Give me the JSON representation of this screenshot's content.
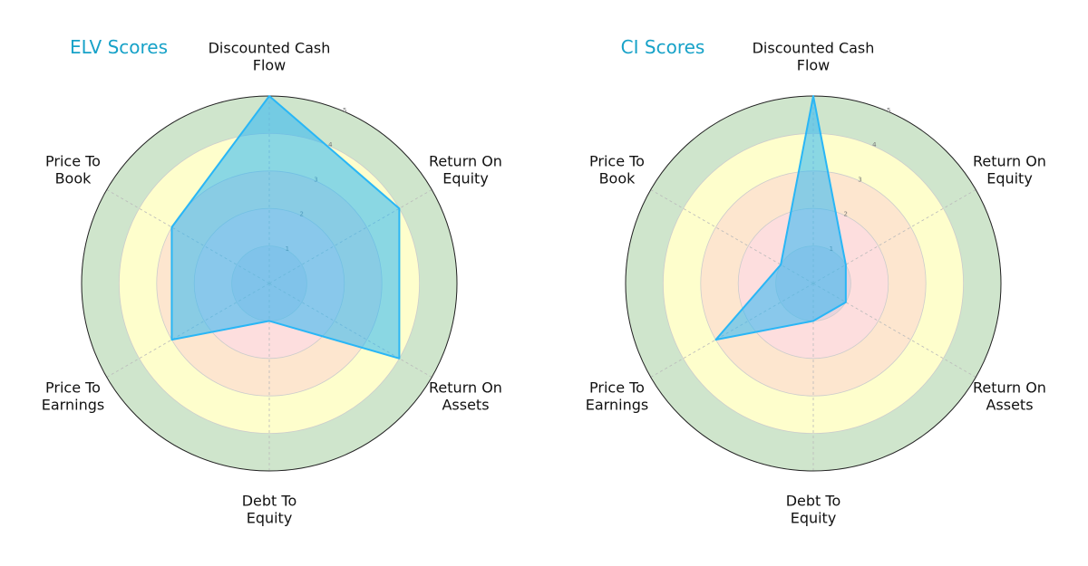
{
  "chart_data": [
    {
      "type": "radar",
      "title": "ELV Scores",
      "categories": [
        "Discounted Cash Flow",
        "Return On Equity",
        "Return On Assets",
        "Debt To Equity",
        "Price To Earnings",
        "Price To Book"
      ],
      "values": [
        5,
        4,
        4,
        1,
        3,
        3
      ],
      "color": "#29b6f6",
      "rlim": [
        0,
        5
      ],
      "rticks": [
        1,
        2,
        3,
        4,
        5
      ],
      "grid": true
    },
    {
      "type": "radar",
      "title": "CI Scores",
      "categories": [
        "Discounted Cash Flow",
        "Return On Equity",
        "Return On Assets",
        "Debt To Equity",
        "Price To Earnings",
        "Price To Book"
      ],
      "values": [
        5,
        1,
        1,
        1,
        3,
        1
      ],
      "color": "#29b6f6",
      "rlim": [
        0,
        5
      ],
      "rticks": [
        1,
        2,
        3,
        4,
        5
      ],
      "grid": true
    }
  ]
}
